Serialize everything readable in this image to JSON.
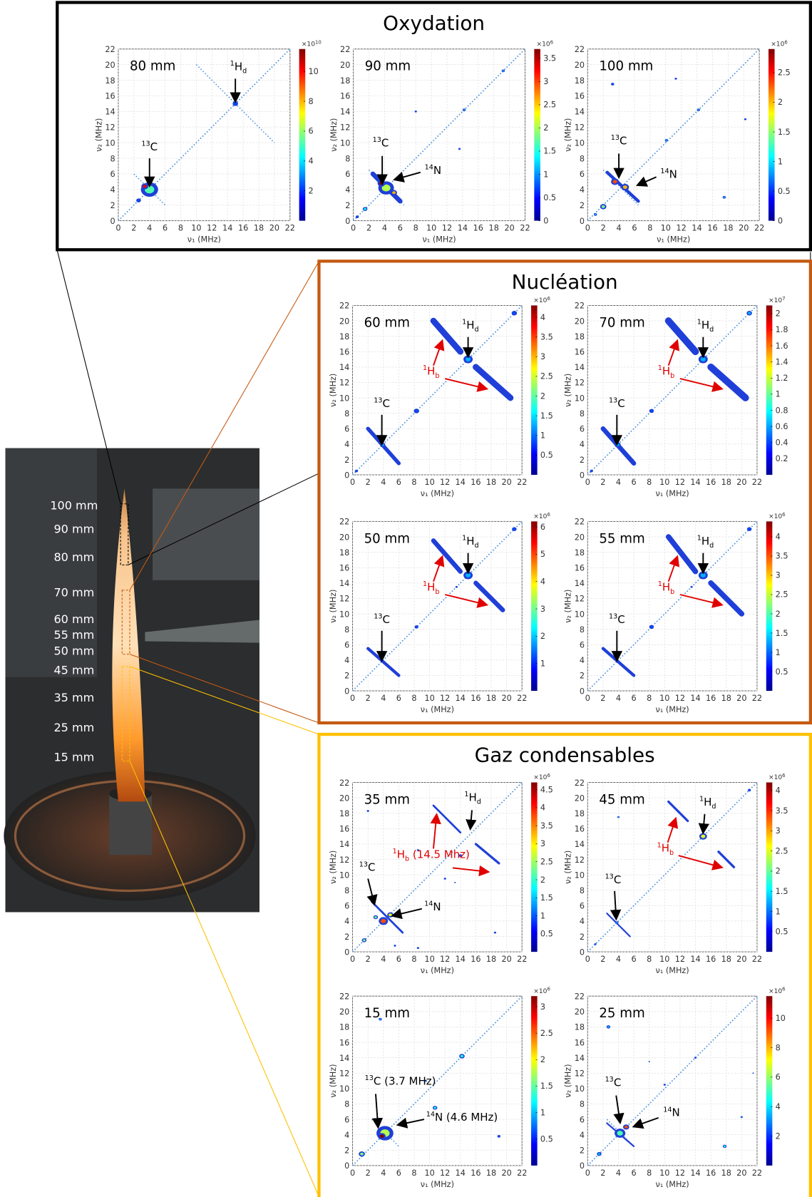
{
  "photo": {
    "heights": [
      "100 mm",
      "90 mm",
      "80 mm",
      "70 mm",
      "60 mm",
      "55 mm",
      "50 mm",
      "45 mm",
      "35 mm",
      "25 mm",
      "15 mm"
    ]
  },
  "axes": {
    "ticks": [
      0,
      2,
      4,
      6,
      8,
      10,
      12,
      14,
      16,
      18,
      20,
      22
    ],
    "limits": [
      0,
      22
    ],
    "x_label": "ν₁ (MHz)",
    "y_label": "ν₂ (MHz)"
  },
  "groups": [
    {
      "title": "Oxydation",
      "panels": [
        {
          "label": "80 mm",
          "colorbar": {
            "base": "×10",
            "power": "10",
            "ticks": [
              2,
              4,
              6,
              8,
              10
            ],
            "range": [
              0,
              11.5
            ]
          },
          "annotations": [
            {
              "sup": "13",
              "text": "C"
            },
            {
              "sup": "1",
              "text": "H",
              "sub": "d"
            }
          ],
          "peaks": [
            [
              4,
              4,
              1.1,
              0.45
            ],
            [
              3.4,
              4.4,
              0.45,
              0.9
            ],
            [
              2.6,
              2.6,
              0.3,
              0.2
            ],
            [
              15,
              15,
              0.35,
              0.2
            ]
          ],
          "ridges": []
        },
        {
          "label": "90 mm",
          "colorbar": {
            "base": "×10",
            "power": "6",
            "ticks": [
              0,
              0.5,
              1,
              1.5,
              2,
              2.5,
              3,
              3.5
            ],
            "range": [
              0,
              3.7
            ]
          },
          "annotations": [
            {
              "sup": "13",
              "text": "C"
            },
            {
              "sup": "14",
              "text": "N"
            }
          ],
          "peaks": [
            [
              4.2,
              4.2,
              1.0,
              0.55
            ],
            [
              3.6,
              4.8,
              0.5,
              1
            ],
            [
              5.2,
              3.6,
              0.4,
              0.7
            ],
            [
              1.5,
              1.5,
              0.3,
              0.4
            ],
            [
              0.5,
              0.5,
              0.2,
              0.2
            ],
            [
              14.2,
              14.2,
              0.2,
              0.3
            ],
            [
              19.2,
              19.2,
              0.2,
              0.3
            ],
            [
              8,
              14,
              0.15,
              0.2
            ],
            [
              13.6,
              9.2,
              0.15,
              0.2
            ]
          ],
          "ridges": [
            [
              2.5,
              6,
              6,
              2.5,
              0.6
            ]
          ]
        },
        {
          "label": "100 mm",
          "colorbar": {
            "base": "×10",
            "power": "6",
            "ticks": [
              0,
              0.5,
              1,
              1.5,
              2,
              2.5
            ],
            "range": [
              0,
              2.9
            ]
          },
          "annotations": [
            {
              "sup": "13",
              "text": "C"
            },
            {
              "sup": "14",
              "text": "N"
            }
          ],
          "peaks": [
            [
              3.5,
              5,
              0.5,
              0.8
            ],
            [
              4.8,
              4.3,
              0.5,
              0.7
            ],
            [
              2,
              1.8,
              0.4,
              0.5
            ],
            [
              1,
              0.8,
              0.2,
              0.3
            ],
            [
              3.2,
              17.5,
              0.2,
              0.2
            ],
            [
              10.1,
              10.3,
              0.2,
              0.3
            ],
            [
              17.5,
              3,
              0.2,
              0.3
            ],
            [
              11.3,
              18.2,
              0.15,
              0.2
            ],
            [
              14.2,
              14.2,
              0.2,
              0.3
            ],
            [
              20.2,
              13,
              0.15,
              0.2
            ]
          ],
          "ridges": [
            [
              2.5,
              6.2,
              6.5,
              2.5,
              0.4
            ]
          ]
        }
      ]
    },
    {
      "title": "Nucléation",
      "panels": [
        {
          "label": "60 mm",
          "colorbar": {
            "base": "×10",
            "power": "6",
            "ticks": [
              0.5,
              1,
              1.5,
              2,
              2.5,
              3,
              3.5,
              4
            ],
            "range": [
              0,
              4.3
            ]
          },
          "annotations": [
            {
              "sup": "1",
              "text": "H",
              "sub": "d"
            },
            {
              "sup": "1",
              "text": "H",
              "sub": "b",
              "color": "#e00000"
            },
            {
              "sup": "13",
              "text": "C"
            }
          ],
          "peaks": [
            [
              15,
              15,
              0.6,
              0.3
            ],
            [
              21,
              21,
              0.35,
              0.2
            ],
            [
              8.3,
              8.3,
              0.35,
              0.2
            ],
            [
              3.9,
              3.9,
              0.35,
              0.3
            ],
            [
              0.5,
              0.5,
              0.2,
              0.2
            ]
          ],
          "ridges": [
            [
              10.5,
              20,
              14,
              16,
              0.8
            ],
            [
              16,
              14,
              20.5,
              10,
              0.8
            ],
            [
              2,
              6,
              6,
              1.5,
              0.5
            ]
          ]
        },
        {
          "label": "70 mm",
          "colorbar": {
            "base": "×10",
            "power": "7",
            "ticks": [
              0.2,
              0.4,
              0.6,
              0.8,
              1,
              1.2,
              1.4,
              1.6,
              1.8,
              2
            ],
            "range": [
              0,
              2.1
            ]
          },
          "annotations": [
            {
              "sup": "1",
              "text": "H",
              "sub": "d"
            },
            {
              "sup": "1",
              "text": "H",
              "sub": "b",
              "color": "#e00000"
            },
            {
              "sup": "13",
              "text": "C"
            }
          ],
          "peaks": [
            [
              15,
              15,
              0.6,
              0.3
            ],
            [
              21,
              21,
              0.35,
              0.3
            ],
            [
              8.3,
              8.3,
              0.3,
              0.2
            ],
            [
              3.9,
              3.9,
              0.4,
              0.3
            ],
            [
              0.5,
              0.5,
              0.2,
              0.2
            ]
          ],
          "ridges": [
            [
              10.5,
              20,
              14,
              16,
              0.9
            ],
            [
              16,
              14,
              20.5,
              10,
              0.9
            ],
            [
              2,
              6,
              6,
              1.5,
              0.6
            ]
          ]
        },
        {
          "label": "50 mm",
          "colorbar": {
            "base": "×10",
            "power": "6",
            "ticks": [
              1,
              2,
              3,
              4,
              5,
              6
            ],
            "range": [
              0,
              6.2
            ]
          },
          "annotations": [
            {
              "sup": "1",
              "text": "H",
              "sub": "d"
            },
            {
              "sup": "1",
              "text": "H",
              "sub": "b",
              "color": "#e00000"
            },
            {
              "sup": "13",
              "text": "C"
            }
          ],
          "peaks": [
            [
              15,
              15,
              0.6,
              0.3
            ],
            [
              21,
              21,
              0.3,
              0.2
            ],
            [
              8.3,
              8.3,
              0.25,
              0.2
            ],
            [
              13.5,
              13.5,
              0.15,
              0.2
            ]
          ],
          "ridges": [
            [
              10.5,
              19.5,
              14,
              15.5,
              0.6
            ],
            [
              16,
              14,
              19.5,
              10.5,
              0.6
            ],
            [
              2,
              5.5,
              6,
              2,
              0.4
            ]
          ]
        },
        {
          "label": "55 mm",
          "colorbar": {
            "base": "×10",
            "power": "6",
            "ticks": [
              0.5,
              1,
              1.5,
              2,
              2.5,
              3,
              3.5,
              4
            ],
            "range": [
              0,
              4.4
            ]
          },
          "annotations": [
            {
              "sup": "1",
              "text": "H",
              "sub": "d"
            },
            {
              "sup": "1",
              "text": "H",
              "sub": "b",
              "color": "#e00000"
            },
            {
              "sup": "13",
              "text": "C"
            }
          ],
          "peaks": [
            [
              15,
              15,
              0.6,
              0.3
            ],
            [
              21,
              21,
              0.3,
              0.2
            ],
            [
              8.3,
              8.3,
              0.3,
              0.2
            ],
            [
              13.5,
              13.5,
              0.15,
              0.2
            ]
          ],
          "ridges": [
            [
              10.5,
              20,
              14,
              15.5,
              0.7
            ],
            [
              16,
              14,
              20,
              10,
              0.7
            ],
            [
              2,
              5.5,
              6,
              2,
              0.4
            ]
          ]
        }
      ]
    },
    {
      "title": "Gaz condensables",
      "panels": [
        {
          "label": "35 mm",
          "colorbar": {
            "base": "×10",
            "power": "6",
            "ticks": [
              0.5,
              1,
              1.5,
              2,
              2.5,
              3,
              3.5,
              4,
              4.5
            ],
            "range": [
              0,
              4.7
            ]
          },
          "annotations": [
            {
              "sup": "1",
              "text": "H",
              "sub": "d"
            },
            {
              "sup": "1",
              "text": "H",
              "sub": "b",
              "tail": " (14.5 Mhz)",
              "color": "#e00000"
            },
            {
              "sup": "13",
              "text": "C"
            },
            {
              "sup": "14",
              "text": "N"
            }
          ],
          "peaks": [
            [
              4,
              4,
              0.6,
              0.8
            ],
            [
              4.9,
              4.8,
              0.4,
              0.6
            ],
            [
              3,
              4.5,
              0.3,
              0.5
            ],
            [
              1.5,
              1.5,
              0.3,
              0.5
            ],
            [
              2,
              18.3,
              0.15,
              0.2
            ],
            [
              8.5,
              13.2,
              0.15,
              0.2
            ],
            [
              14,
              12.5,
              0.2,
              0.2
            ],
            [
              12,
              9.5,
              0.15,
              0.2
            ],
            [
              13.3,
              9,
              0.1,
              0.2
            ],
            [
              8.5,
              0.5,
              0.15,
              0.2
            ],
            [
              18.5,
              2.5,
              0.15,
              0.2
            ],
            [
              5.5,
              0.8,
              0.15,
              0.2
            ]
          ],
          "ridges": [
            [
              10.5,
              19,
              14,
              15.5,
              0.25
            ],
            [
              16,
              14,
              19,
              11.5,
              0.3
            ],
            [
              2.5,
              6.5,
              6.5,
              2.5,
              0.25
            ]
          ]
        },
        {
          "label": "45 mm",
          "colorbar": {
            "base": "×10",
            "power": "6",
            "ticks": [
              0.5,
              1,
              1.5,
              2,
              2.5,
              3,
              3.5,
              4
            ],
            "range": [
              0,
              4.2
            ]
          },
          "annotations": [
            {
              "sup": "1",
              "text": "H",
              "sub": "d"
            },
            {
              "sup": "1",
              "text": "H",
              "sub": "b",
              "color": "#e00000"
            },
            {
              "sup": "13",
              "text": "C"
            }
          ],
          "peaks": [
            [
              15,
              15,
              0.5,
              0.6
            ],
            [
              21,
              21,
              0.2,
              0.2
            ],
            [
              3.8,
              3.8,
              0.2,
              0.3
            ],
            [
              1,
              1,
              0.15,
              0.2
            ],
            [
              4,
              17.5,
              0.15,
              0.3
            ]
          ],
          "ridges": [
            [
              10.5,
              19.5,
              13,
              17,
              0.3
            ],
            [
              17,
              13,
              19,
              11,
              0.3
            ],
            [
              2.5,
              5,
              5.5,
              2,
              0.2
            ]
          ]
        },
        {
          "label": "15 mm",
          "colorbar": {
            "base": "×10",
            "power": "6",
            "ticks": [
              0.5,
              1,
              1.5,
              2,
              2.5,
              3
            ],
            "range": [
              0,
              3.2
            ]
          },
          "annotations": [
            {
              "sup": "13",
              "text": "C",
              "tail": " (3.7 MHz)"
            },
            {
              "sup": "14",
              "text": "N",
              "tail": " (4.6 MHz)"
            }
          ],
          "peaks": [
            [
              4.2,
              4.2,
              1.1,
              0.55
            ],
            [
              3.8,
              3.8,
              0.5,
              1
            ],
            [
              1.2,
              1.5,
              0.4,
              0.5
            ],
            [
              14.2,
              14.2,
              0.35,
              0.4
            ],
            [
              10.7,
              7.5,
              0.3,
              0.4
            ],
            [
              3.6,
              19,
              0.2,
              0.3
            ],
            [
              9.5,
              11,
              0.15,
              0.2
            ],
            [
              19,
              3.8,
              0.2,
              0.2
            ]
          ],
          "ridges": []
        },
        {
          "label": "25 mm",
          "colorbar": {
            "base": "×10",
            "power": "6",
            "ticks": [
              2,
              4,
              6,
              8,
              10
            ],
            "range": [
              0,
              11.5
            ]
          },
          "annotations": [
            {
              "sup": "13",
              "text": "C"
            },
            {
              "sup": "14",
              "text": "N"
            }
          ],
          "peaks": [
            [
              4.2,
              4.2,
              0.7,
              0.45
            ],
            [
              5,
              5,
              0.4,
              0.8
            ],
            [
              1.5,
              1.5,
              0.3,
              0.3
            ],
            [
              2.7,
              18,
              0.25,
              0.3
            ],
            [
              17.8,
              2.5,
              0.25,
              0.4
            ],
            [
              14,
              14,
              0.15,
              0.2
            ],
            [
              8,
              13.5,
              0.1,
              0.2
            ],
            [
              10,
              10.5,
              0.15,
              0.2
            ],
            [
              20,
              6.3,
              0.15,
              0.3
            ],
            [
              21.5,
              12,
              0.1,
              0.2
            ]
          ],
          "ridges": [
            [
              2.5,
              5.5,
              6,
              2.5,
              0.2
            ]
          ]
        }
      ]
    }
  ]
}
